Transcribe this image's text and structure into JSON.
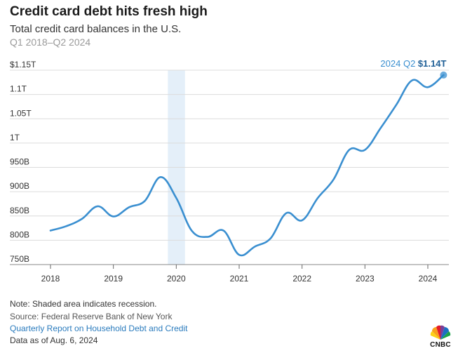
{
  "header": {
    "title": "Credit card debt hits fresh high",
    "subtitle": "Total credit card balances in the U.S.",
    "period": "Q1 2018–Q2 2024"
  },
  "chart_data": {
    "type": "line",
    "title": "Credit card debt hits fresh high",
    "subtitle": "Total credit card balances in the U.S.",
    "xlabel": "",
    "ylabel": "",
    "ylim": [
      750,
      1150
    ],
    "y_unit": "billions of dollars",
    "y_ticks": [
      750,
      800,
      850,
      900,
      950,
      1000,
      1050,
      1100,
      1150
    ],
    "y_tick_labels": [
      "750B",
      "800B",
      "850B",
      "900B",
      "950B",
      "1T",
      "1.05T",
      "1.1T",
      "$1.15T"
    ],
    "x_ticks": [
      2018,
      2019,
      2020,
      2021,
      2022,
      2023,
      2024
    ],
    "x_tick_labels": [
      "2018",
      "2019",
      "2020",
      "2021",
      "2022",
      "2023",
      "2024"
    ],
    "grid": true,
    "recession": {
      "start": 2020.0,
      "end": 2020.25
    },
    "series": [
      {
        "name": "Total credit card balances",
        "color": "#3a8fd0",
        "x": [
          2018.0,
          2018.25,
          2018.5,
          2018.75,
          2019.0,
          2019.25,
          2019.5,
          2019.75,
          2020.0,
          2020.25,
          2020.5,
          2020.75,
          2021.0,
          2021.25,
          2021.5,
          2021.75,
          2022.0,
          2022.25,
          2022.5,
          2022.75,
          2023.0,
          2023.25,
          2023.5,
          2023.75,
          2024.0,
          2024.25
        ],
        "values": [
          820,
          829,
          844,
          870,
          849,
          868,
          881,
          930,
          887,
          819,
          807,
          820,
          770,
          787,
          804,
          856,
          841,
          887,
          925,
          986,
          986,
          1031,
          1079,
          1129,
          1115,
          1140
        ]
      }
    ],
    "end_label": {
      "period": "2024 Q2",
      "value": "$1.14T"
    }
  },
  "footer": {
    "note": "Note: Shaded area indicates recession.",
    "source": "Source: Federal Reserve Bank of New York",
    "link": "Quarterly Report on Household Debt and Credit",
    "as_of": "Data as of Aug. 6, 2024"
  },
  "brand": {
    "logo_text": "CNBC",
    "accent": "#3a8fd0",
    "recession_color": "#e4eff9"
  }
}
